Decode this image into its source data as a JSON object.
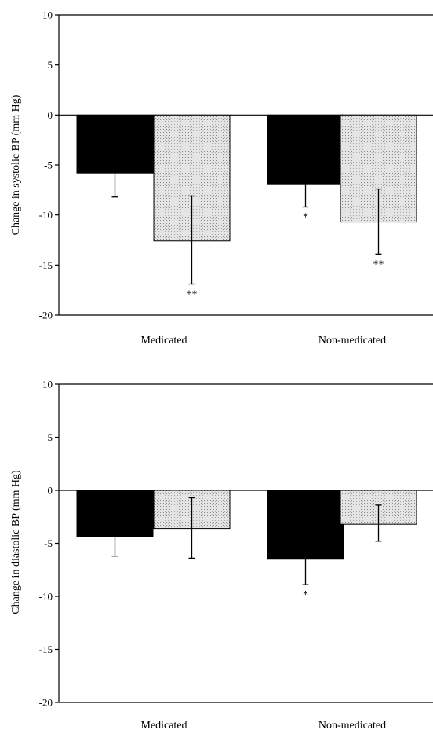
{
  "chart_data": [
    {
      "type": "bar",
      "title": "",
      "xlabel": "",
      "ylabel": "Change in systolic BP (mm Hg)",
      "ylim": [
        -20,
        10
      ],
      "yticks": [
        10,
        5,
        0,
        -5,
        -10,
        -15,
        -20
      ],
      "categories": [
        "Medicated",
        "Non-medicated"
      ],
      "series": [
        {
          "color": "#000000",
          "fill": "solid",
          "values": [
            -5.8,
            -6.9
          ],
          "error_extent": [
            -8.2,
            -9.2
          ],
          "significance": [
            "",
            "*"
          ]
        },
        {
          "color": "#d6d6d6",
          "fill": "stippled",
          "values": [
            -12.6,
            -10.7
          ],
          "error_extent": [
            -8.1,
            -7.4,
            -16.9,
            -13.9
          ],
          "error_up": [
            -8.1,
            -7.4
          ],
          "error_down": [
            -16.9,
            -13.9
          ],
          "significance": [
            "**",
            "**"
          ]
        }
      ]
    },
    {
      "type": "bar",
      "title": "",
      "xlabel": "",
      "ylabel": "Change in diastolic BP (mm Hg)",
      "ylim": [
        -20,
        10
      ],
      "yticks": [
        10,
        5,
        0,
        -5,
        -10,
        -15,
        -20
      ],
      "categories": [
        "Medicated",
        "Non-medicated"
      ],
      "series": [
        {
          "color": "#000000",
          "fill": "solid",
          "values": [
            -4.4,
            -6.5
          ],
          "error_extent": [
            -6.2,
            -8.9
          ],
          "significance": [
            "",
            "*"
          ]
        },
        {
          "color": "#d6d6d6",
          "fill": "stippled",
          "values": [
            -3.6,
            -3.2
          ],
          "error_up": [
            -0.7,
            -1.4
          ],
          "error_down": [
            -6.4,
            -4.8
          ],
          "significance": [
            "",
            ""
          ]
        }
      ]
    }
  ]
}
